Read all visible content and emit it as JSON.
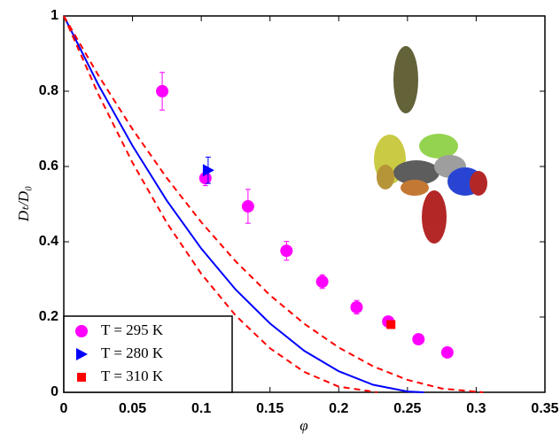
{
  "chart_data": {
    "type": "scatter",
    "xlabel": "φ",
    "ylabel": "Dₜ/D₀",
    "xlim": [
      0,
      0.35
    ],
    "ylim": [
      0,
      1
    ],
    "xticks": [
      0,
      0.05,
      0.1,
      0.15,
      0.2,
      0.25,
      0.3,
      0.35
    ],
    "yticks": [
      0,
      0.2,
      0.4,
      0.6,
      0.8,
      1
    ],
    "legend": "lower left",
    "series": [
      {
        "name": "T = 295 K",
        "color": "#ff00ff",
        "marker": "circle",
        "x": [
          0.0716,
          0.103,
          0.134,
          0.162,
          0.188,
          0.213,
          0.236,
          0.258,
          0.279
        ],
        "values": [
          0.8,
          0.569,
          0.494,
          0.376,
          0.294,
          0.226,
          0.188,
          0.141,
          0.106
        ],
        "errors": [
          0.05,
          0.02,
          0.045,
          0.025,
          0.018,
          0.018,
          0.01,
          null,
          null
        ]
      },
      {
        "name": "T = 280 K",
        "color": "#0000ff",
        "marker": "triangle",
        "x": [
          0.105
        ],
        "values": [
          0.59
        ],
        "errors": [
          0.035
        ]
      },
      {
        "name": "T = 310 K",
        "color": "#ff0000",
        "marker": "square",
        "x": [
          0.238
        ],
        "values": [
          0.18
        ],
        "errors": [
          null
        ]
      },
      {
        "color": "#0000ff",
        "marker": "line",
        "dashed": false,
        "x": [
          0,
          0.025,
          0.05,
          0.075,
          0.1,
          0.125,
          0.15,
          0.175,
          0.2,
          0.225,
          0.25,
          0.262
        ],
        "values": [
          1,
          0.818,
          0.655,
          0.509,
          0.382,
          0.273,
          0.183,
          0.11,
          0.056,
          0.02,
          0.002,
          0
        ]
      },
      {
        "color": "#ff0000",
        "marker": "line",
        "dashed": true,
        "x": [
          0,
          0.025,
          0.05,
          0.075,
          0.1,
          0.125,
          0.15,
          0.175,
          0.2,
          0.225,
          0.25,
          0.275,
          0.305
        ],
        "values": [
          1,
          0.843,
          0.699,
          0.569,
          0.452,
          0.348,
          0.258,
          0.182,
          0.119,
          0.069,
          0.033,
          0.01,
          0
        ]
      },
      {
        "color": "#ff0000",
        "marker": "line",
        "dashed": true,
        "x": [
          0,
          0.025,
          0.05,
          0.075,
          0.1,
          0.125,
          0.15,
          0.175,
          0.2,
          0.228
        ],
        "values": [
          1,
          0.793,
          0.61,
          0.45,
          0.315,
          0.204,
          0.117,
          0.054,
          0.015,
          0
        ]
      }
    ]
  }
}
